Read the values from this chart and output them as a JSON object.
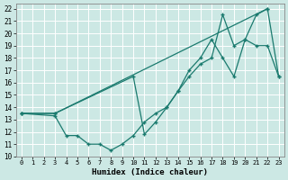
{
  "line1_x": [
    0,
    3,
    22
  ],
  "line1_y": [
    13.5,
    13.5,
    22.0
  ],
  "line2_x": [
    0,
    3,
    10,
    11,
    12,
    13,
    14,
    15,
    16,
    17,
    18,
    19,
    20,
    21,
    22,
    23
  ],
  "line2_y": [
    13.5,
    13.5,
    16.5,
    11.8,
    12.8,
    14.0,
    15.3,
    16.5,
    17.5,
    18.0,
    21.5,
    19.0,
    19.5,
    21.5,
    22.0,
    16.5
  ],
  "line3_x": [
    0,
    3,
    4,
    5,
    6,
    7,
    8,
    9,
    10,
    11,
    12,
    13,
    14,
    15,
    16,
    17,
    18,
    19,
    20,
    21,
    22,
    23
  ],
  "line3_y": [
    13.5,
    13.3,
    11.7,
    11.7,
    11.0,
    11.0,
    10.5,
    11.0,
    11.7,
    12.8,
    13.5,
    14.0,
    15.3,
    17.0,
    18.0,
    19.5,
    18.0,
    16.5,
    19.5,
    19.0,
    19.0,
    16.5
  ],
  "color": "#1a7a6e",
  "bg_color": "#cce8e4",
  "grid_color": "#b8d8d4",
  "xlabel": "Humidex (Indice chaleur)",
  "xlim": [
    -0.5,
    23.5
  ],
  "ylim": [
    10,
    22.4
  ],
  "xticks": [
    0,
    1,
    2,
    3,
    4,
    5,
    6,
    7,
    8,
    9,
    10,
    11,
    12,
    13,
    14,
    15,
    16,
    17,
    18,
    19,
    20,
    21,
    22,
    23
  ],
  "yticks": [
    10,
    11,
    12,
    13,
    14,
    15,
    16,
    17,
    18,
    19,
    20,
    21,
    22
  ]
}
